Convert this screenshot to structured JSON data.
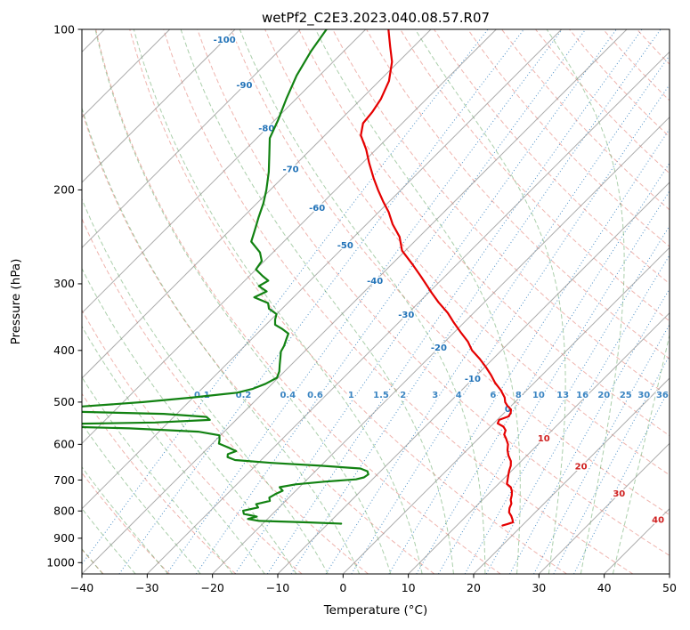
{
  "figure": {
    "title": "wetPf2_C2E3.2023.040.08.57.R07",
    "x_axis_label": "Temperature (°C)",
    "y_axis_label": "Pressure (hPa)"
  },
  "chart_data": {
    "type": "line",
    "subtype": "skew-t-log-p",
    "title": "wetPf2_C2E3.2023.040.08.57.R07",
    "xlabel": "Temperature (°C)",
    "ylabel": "Pressure (hPa)",
    "x_range": [
      -40,
      50
    ],
    "pressure_range": [
      100,
      1050
    ],
    "skew_degrees": 45,
    "x_ticks": [
      -40,
      -30,
      -20,
      -10,
      0,
      10,
      20,
      30,
      40,
      50
    ],
    "y_ticks": [
      100,
      200,
      300,
      400,
      500,
      600,
      700,
      800,
      900,
      1000
    ],
    "grid": true,
    "legend": "none",
    "series": [
      {
        "name": "temperature",
        "color": "#e50000",
        "points": [
          [
            100,
            -76.5
          ],
          [
            108,
            -73.5
          ],
          [
            115,
            -71
          ],
          [
            125,
            -68.5
          ],
          [
            135,
            -67
          ],
          [
            143,
            -66.3
          ],
          [
            150,
            -66
          ],
          [
            158,
            -64.5
          ],
          [
            168,
            -61.5
          ],
          [
            178,
            -59
          ],
          [
            190,
            -56
          ],
          [
            200,
            -53.5
          ],
          [
            210,
            -51
          ],
          [
            220,
            -48.5
          ],
          [
            232,
            -46
          ],
          [
            245,
            -43
          ],
          [
            260,
            -40.5
          ],
          [
            275,
            -37
          ],
          [
            290,
            -33.8
          ],
          [
            300,
            -31.8
          ],
          [
            312,
            -29.5
          ],
          [
            325,
            -27
          ],
          [
            340,
            -24
          ],
          [
            355,
            -21.5
          ],
          [
            370,
            -19
          ],
          [
            385,
            -16.5
          ],
          [
            400,
            -14.5
          ],
          [
            415,
            -12
          ],
          [
            430,
            -9.8
          ],
          [
            445,
            -7.8
          ],
          [
            460,
            -6
          ],
          [
            475,
            -4
          ],
          [
            490,
            -2.3
          ],
          [
            500,
            -1.5
          ],
          [
            508,
            -0.6
          ],
          [
            516,
            0.5
          ],
          [
            524,
            1.0
          ],
          [
            532,
            1.2
          ],
          [
            540,
            0.3
          ],
          [
            548,
            0.6
          ],
          [
            556,
            2.0
          ],
          [
            565,
            2.9
          ],
          [
            575,
            3.3
          ],
          [
            585,
            4.2
          ],
          [
            600,
            5.4
          ],
          [
            615,
            6.2
          ],
          [
            630,
            7.2
          ],
          [
            645,
            8.4
          ],
          [
            658,
            9.1
          ],
          [
            672,
            9.6
          ],
          [
            686,
            10.2
          ],
          [
            700,
            10.8
          ],
          [
            712,
            11.3
          ],
          [
            722,
            12.4
          ],
          [
            735,
            13.2
          ],
          [
            748,
            13.8
          ],
          [
            762,
            14.3
          ],
          [
            775,
            15.0
          ],
          [
            790,
            15.4
          ],
          [
            805,
            16.0
          ],
          [
            818,
            16.9
          ],
          [
            830,
            17.6
          ],
          [
            840,
            18.1
          ],
          [
            847,
            17.5
          ],
          [
            852,
            17.0
          ]
        ]
      },
      {
        "name": "dewpoint",
        "color": "#128212",
        "points": [
          [
            100,
            -86
          ],
          [
            110,
            -85
          ],
          [
            122,
            -83.5
          ],
          [
            135,
            -81.5
          ],
          [
            148,
            -79.5
          ],
          [
            160,
            -78
          ],
          [
            172,
            -75.5
          ],
          [
            185,
            -73
          ],
          [
            200,
            -70.6
          ],
          [
            212,
            -69
          ],
          [
            225,
            -67.6
          ],
          [
            238,
            -66.2
          ],
          [
            250,
            -65
          ],
          [
            262,
            -62
          ],
          [
            272,
            -60.4
          ],
          [
            282,
            -60
          ],
          [
            290,
            -58
          ],
          [
            296,
            -56.4
          ],
          [
            303,
            -57
          ],
          [
            310,
            -55
          ],
          [
            318,
            -56
          ],
          [
            326,
            -53
          ],
          [
            334,
            -52
          ],
          [
            342,
            -50
          ],
          [
            350,
            -49.4
          ],
          [
            358,
            -48.6
          ],
          [
            364,
            -47
          ],
          [
            372,
            -45.2
          ],
          [
            382,
            -44.6
          ],
          [
            392,
            -44
          ],
          [
            402,
            -43.6
          ],
          [
            412,
            -42.8
          ],
          [
            425,
            -41.8
          ],
          [
            438,
            -40.8
          ],
          [
            450,
            -40.2
          ],
          [
            462,
            -41
          ],
          [
            472,
            -42.2
          ],
          [
            480,
            -44
          ],
          [
            490,
            -50
          ],
          [
            500,
            -57
          ],
          [
            510,
            -66
          ],
          [
            518,
            -75
          ],
          [
            526,
            -52
          ],
          [
            533,
            -45
          ],
          [
            540,
            -44
          ],
          [
            546,
            -52
          ],
          [
            552,
            -75
          ],
          [
            560,
            -55
          ],
          [
            568,
            -44
          ],
          [
            577,
            -40.2
          ],
          [
            588,
            -39.5
          ],
          [
            598,
            -39
          ],
          [
            608,
            -37
          ],
          [
            618,
            -35.2
          ],
          [
            626,
            -36
          ],
          [
            634,
            -35.6
          ],
          [
            642,
            -34
          ],
          [
            650,
            -28
          ],
          [
            658,
            -20
          ],
          [
            666,
            -13.5
          ],
          [
            674,
            -12
          ],
          [
            683,
            -11.4
          ],
          [
            692,
            -11.6
          ],
          [
            698,
            -12.5
          ],
          [
            705,
            -17
          ],
          [
            713,
            -21
          ],
          [
            722,
            -23
          ],
          [
            733,
            -22
          ],
          [
            744,
            -22.6
          ],
          [
            755,
            -23
          ],
          [
            766,
            -22.4
          ],
          [
            777,
            -24
          ],
          [
            788,
            -23.2
          ],
          [
            799,
            -25
          ],
          [
            810,
            -24.4
          ],
          [
            820,
            -22
          ],
          [
            828,
            -23
          ],
          [
            835,
            -21
          ],
          [
            840,
            -14
          ],
          [
            845,
            -8
          ]
        ]
      }
    ],
    "reference_lines": {
      "isotherms": {
        "color": "#909090",
        "opacity": 0.75,
        "from": -120,
        "to": 50,
        "step": 10,
        "style": "solid"
      },
      "dry_adiabats": {
        "color": "#e2766b",
        "opacity": 0.55,
        "from": -40,
        "to": 190,
        "step": 10,
        "style": "dashed"
      },
      "moist_adiabats": {
        "color": "#58a058",
        "opacity": 0.5,
        "from": -60,
        "to": 40,
        "step": 5,
        "style": "dashed"
      },
      "mixing_ratio": {
        "color": "#3b85c2",
        "opacity": 0.9,
        "style": "dotted",
        "values": [
          0.1,
          0.2,
          0.4,
          0.6,
          1,
          1.5,
          2,
          3,
          4,
          6,
          8,
          10,
          13,
          16,
          20,
          25,
          30,
          36
        ],
        "labels": [
          "0.1",
          "0.2",
          "0.4",
          "0.6",
          "1",
          "1.5",
          "2",
          "3",
          "4",
          "6",
          "8",
          "10",
          "13",
          "16",
          "20",
          "25",
          "30",
          "36"
        ],
        "label_pressure": 500
      }
    },
    "isotherm_labels": {
      "values": [
        -100,
        -90,
        -80,
        -70,
        -60,
        -50,
        -40,
        -30,
        -20,
        -10,
        0,
        10,
        20,
        30,
        40
      ],
      "negative_color": "#2273b8",
      "positive_color": "#cf2020"
    }
  }
}
